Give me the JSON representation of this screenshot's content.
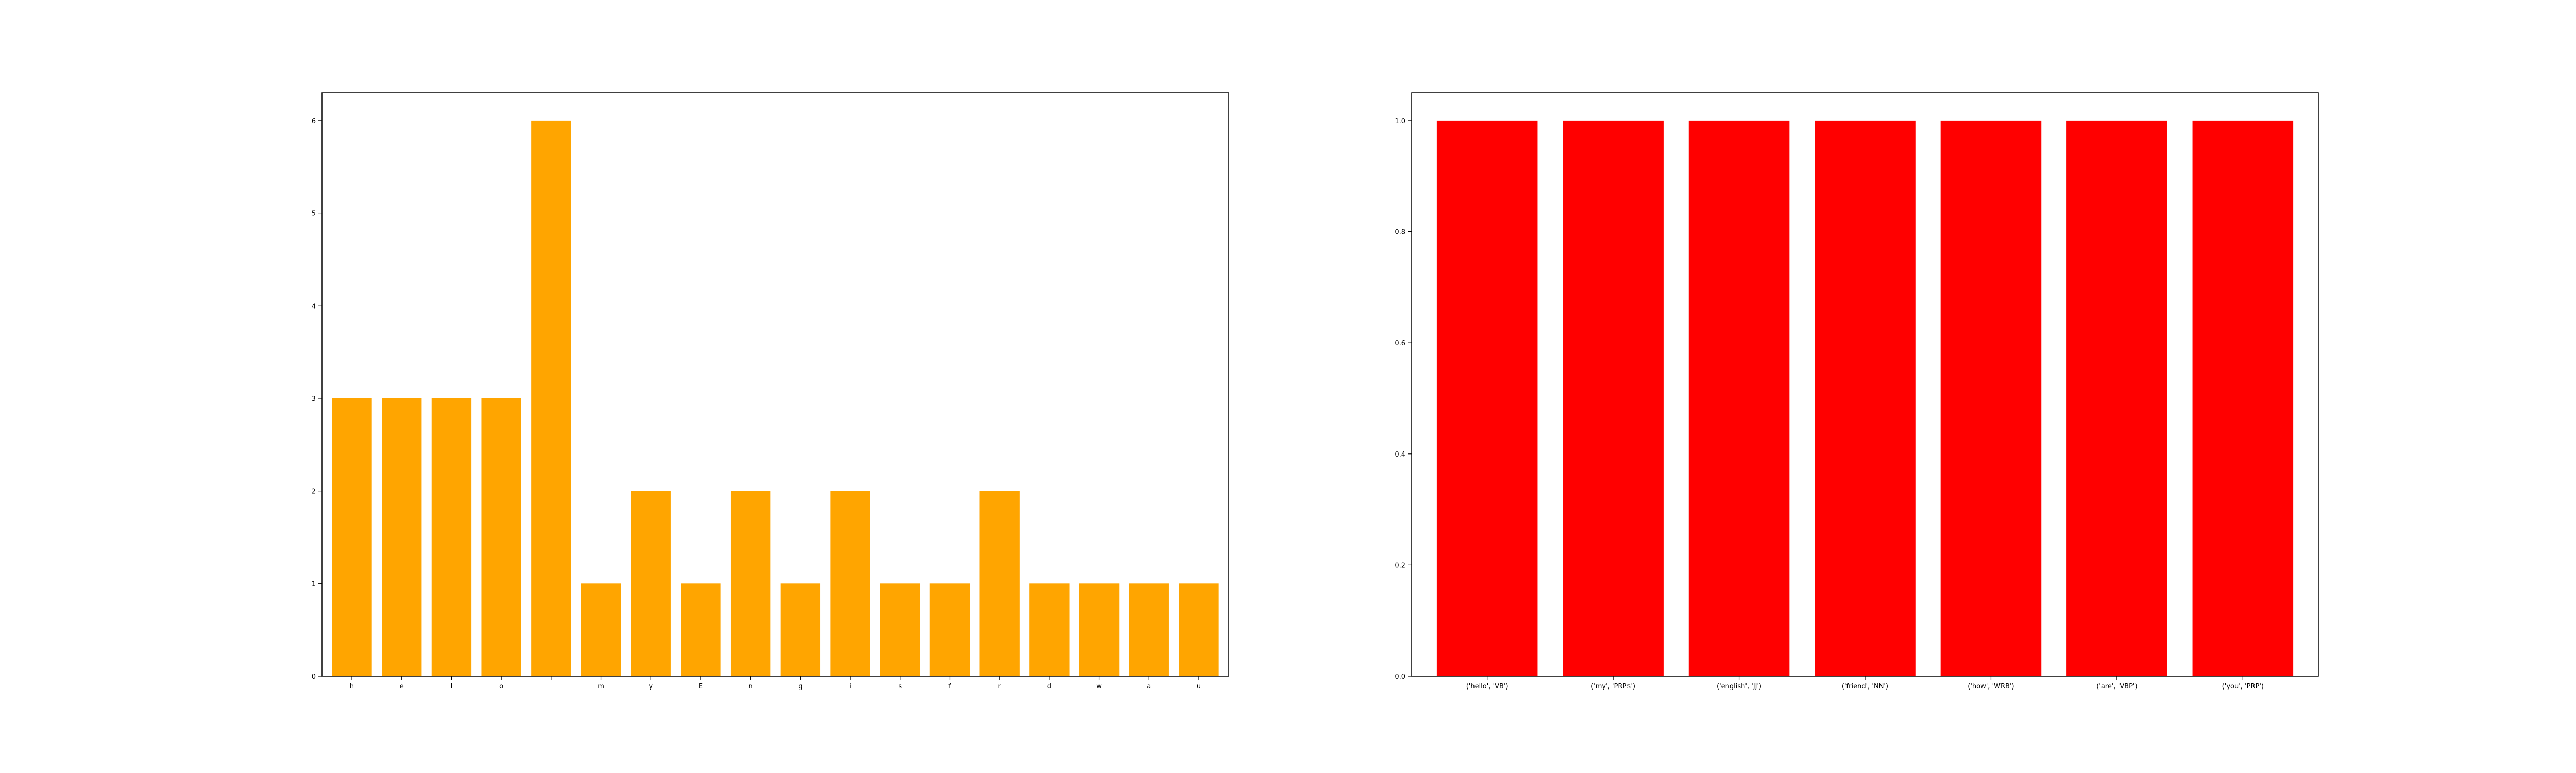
{
  "chart_data": [
    {
      "type": "bar",
      "title": "",
      "xlabel": "",
      "ylabel": "",
      "categories": [
        "h",
        "e",
        "l",
        "o",
        " ",
        "m",
        "y",
        "E",
        "n",
        "g",
        "i",
        "s",
        "f",
        "r",
        "d",
        "w",
        "a",
        "u"
      ],
      "values": [
        3,
        3,
        3,
        3,
        6,
        1,
        2,
        1,
        2,
        1,
        2,
        1,
        1,
        2,
        1,
        1,
        1,
        1
      ],
      "ylim": [
        0,
        6.3
      ],
      "yticks": [
        "0",
        "1",
        "2",
        "3",
        "4",
        "5",
        "6"
      ],
      "color": "#ffa500",
      "grid": false
    },
    {
      "type": "bar",
      "title": "",
      "xlabel": "",
      "ylabel": "",
      "categories": [
        "('hello', 'VB')",
        "('my', 'PRP$')",
        "('english', 'JJ')",
        "('friend', 'NN')",
        "('how', 'WRB')",
        "('are', 'VBP')",
        "('you', 'PRP')"
      ],
      "values": [
        1,
        1,
        1,
        1,
        1,
        1,
        1
      ],
      "ylim": [
        0,
        1.05
      ],
      "yticks": [
        "0.0",
        "0.2",
        "0.4",
        "0.6",
        "0.8",
        "1.0"
      ],
      "color": "#ff0000",
      "grid": false
    }
  ]
}
